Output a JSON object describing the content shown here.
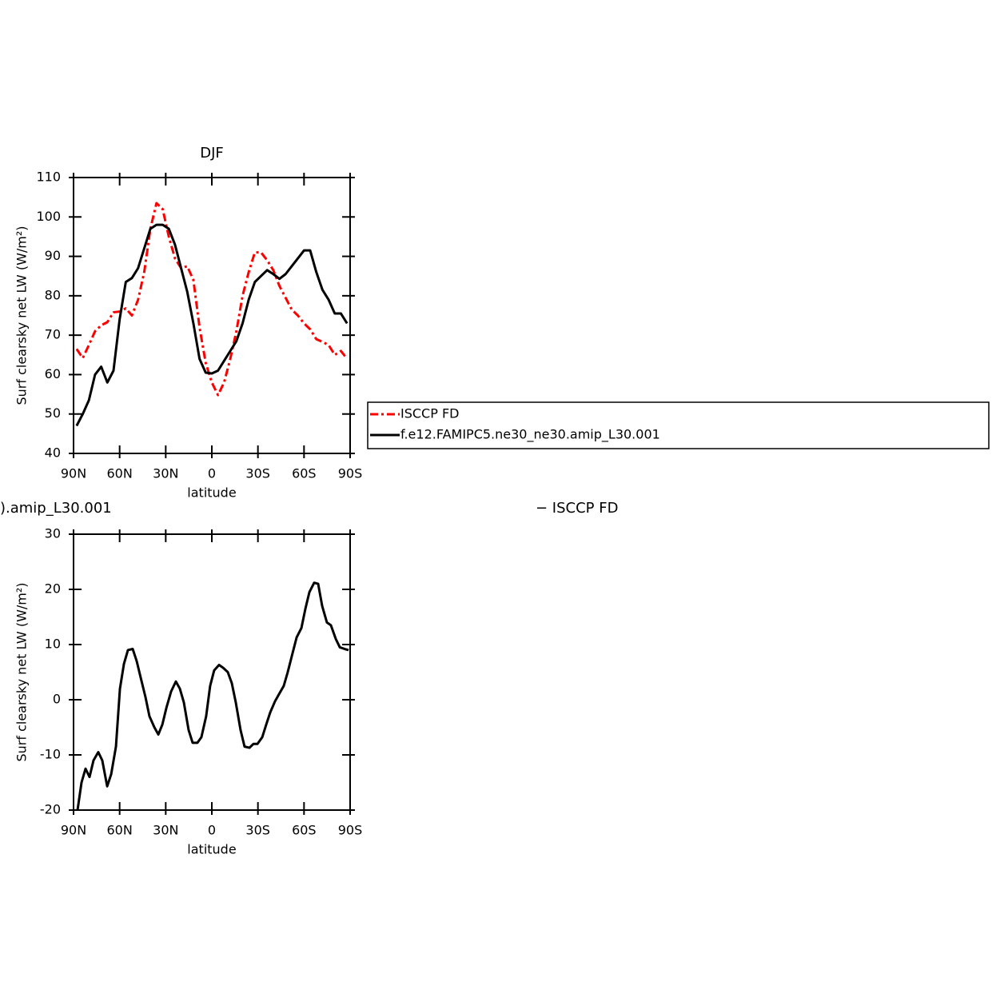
{
  "chart_data": [
    {
      "type": "line",
      "title": "DJF",
      "xlabel": "latitude",
      "ylabel": "Surf clearsky net LW (W/m²)",
      "x": [
        88,
        84,
        80,
        76,
        72,
        68,
        64,
        60,
        56,
        52,
        48,
        44,
        40,
        36,
        32,
        28,
        24,
        20,
        16,
        12,
        8,
        4,
        0,
        -4,
        -8,
        -12,
        -16,
        -20,
        -24,
        -28,
        -32,
        -36,
        -40,
        -44,
        -48,
        -52,
        -56,
        -60,
        -64,
        -68,
        -72,
        -76,
        -80,
        -84,
        -88
      ],
      "series": [
        {
          "name": "ISCCP FD",
          "color": "#ff0000",
          "linestyle": "dashed",
          "values": [
            66.5,
            64.2,
            67.5,
            71,
            72.5,
            73.3,
            75.8,
            76,
            76.8,
            75,
            79,
            86,
            97,
            103.5,
            102,
            95,
            89.5,
            87,
            87.5,
            84,
            72,
            63,
            58,
            54.8,
            58,
            64,
            71,
            80,
            86,
            91,
            91,
            89,
            86.5,
            82.5,
            79.5,
            76.5,
            75,
            73,
            71.5,
            69,
            68.3,
            67.5,
            65,
            66,
            64
          ]
        },
        {
          "name": "f.e12.FAMIPC5.ne30_ne30.amip_L30.001",
          "color": "#000000",
          "linestyle": "solid",
          "values": [
            47,
            50,
            53.5,
            60,
            62,
            58,
            61,
            74,
            83.5,
            84.5,
            87,
            92,
            97,
            98,
            98,
            97,
            93,
            87,
            81,
            73,
            64,
            60.5,
            60.3,
            61,
            63.5,
            66,
            68.5,
            73,
            79,
            83.5,
            85,
            86.5,
            85.5,
            84.3,
            85.5,
            87.5,
            89.5,
            91.5,
            91.5,
            86,
            81.5,
            79,
            75.5,
            75.5,
            73
          ]
        }
      ],
      "xlim": [
        90,
        -90
      ],
      "xticks": [
        {
          "value": 90,
          "label": "90N"
        },
        {
          "value": 60,
          "label": "60N"
        },
        {
          "value": 30,
          "label": "30N"
        },
        0,
        {
          "value": -30,
          "label": "30S"
        },
        {
          "value": -60,
          "label": "60S"
        },
        {
          "value": -90,
          "label": "90S"
        }
      ],
      "ylim": [
        40,
        110
      ],
      "yticks": [
        40,
        50,
        60,
        70,
        80,
        90,
        100,
        110
      ],
      "legend": "right"
    },
    {
      "type": "line",
      "title": ").amip_L30.001",
      "annotations": [
        "− ISCCP FD"
      ],
      "xlabel": "latitude",
      "ylabel": "Surf clearsky net LW (W/m²)",
      "x": [
        87.4,
        84.8,
        82.2,
        79.6,
        77.0,
        73.9,
        71.3,
        68.1,
        65.5,
        62.4,
        59.8,
        57.2,
        54.6,
        51.5,
        48.9,
        46.3,
        43.2,
        40.6,
        37.4,
        34.8,
        32.2,
        29.6,
        26.5,
        23.4,
        20.8,
        18.2,
        15.1,
        12.5,
        9.4,
        6.8,
        3.7,
        1.1,
        -1.5,
        -4.7,
        -7.3,
        -10.4,
        -13.0,
        -15.6,
        -18.7,
        -21.3,
        -24.5,
        -27.1,
        -29.7,
        -32.8,
        -35.4,
        -38.0,
        -41.1,
        -43.7,
        -46.8,
        -49.4,
        -52.6,
        -55.2,
        -58.3,
        -60.9,
        -63.5,
        -66.6,
        -69.2,
        -71.8,
        -74.9,
        -77.5,
        -80.7,
        -83.3,
        -86.4,
        -89.0
      ],
      "series": [
        {
          "color": "#000000",
          "linestyle": "solid",
          "values": [
            -20,
            -15,
            -12.5,
            -14,
            -11,
            -9.5,
            -11,
            -15.7,
            -13.5,
            -8.5,
            2,
            6.5,
            9,
            9.2,
            7,
            4,
            0.5,
            -3,
            -5,
            -6.3,
            -4.5,
            -1.5,
            1.5,
            3.3,
            2,
            -0.5,
            -5.5,
            -7.8,
            -7.8,
            -6.8,
            -3,
            2.5,
            5.3,
            6.3,
            5.8,
            5,
            3,
            -0.5,
            -5.5,
            -8.5,
            -8.7,
            -8,
            -8,
            -6.8,
            -4.5,
            -2.3,
            -0.3,
            1,
            2.5,
            5,
            8.5,
            11.3,
            13,
            16.5,
            19.5,
            21.2,
            21,
            17,
            14,
            13.5,
            11,
            9.5,
            9.2,
            9
          ]
        }
      ],
      "xlim": [
        90,
        -90
      ],
      "xticks": [
        {
          "value": 90,
          "label": "90N"
        },
        {
          "value": 60,
          "label": "60N"
        },
        {
          "value": 30,
          "label": "30N"
        },
        0,
        {
          "value": -30,
          "label": "30S"
        },
        {
          "value": -60,
          "label": "60S"
        },
        {
          "value": -90,
          "label": "90S"
        }
      ],
      "ylim": [
        -20,
        30
      ],
      "yticks": [
        -20,
        -10,
        0,
        10,
        20,
        30
      ]
    }
  ]
}
